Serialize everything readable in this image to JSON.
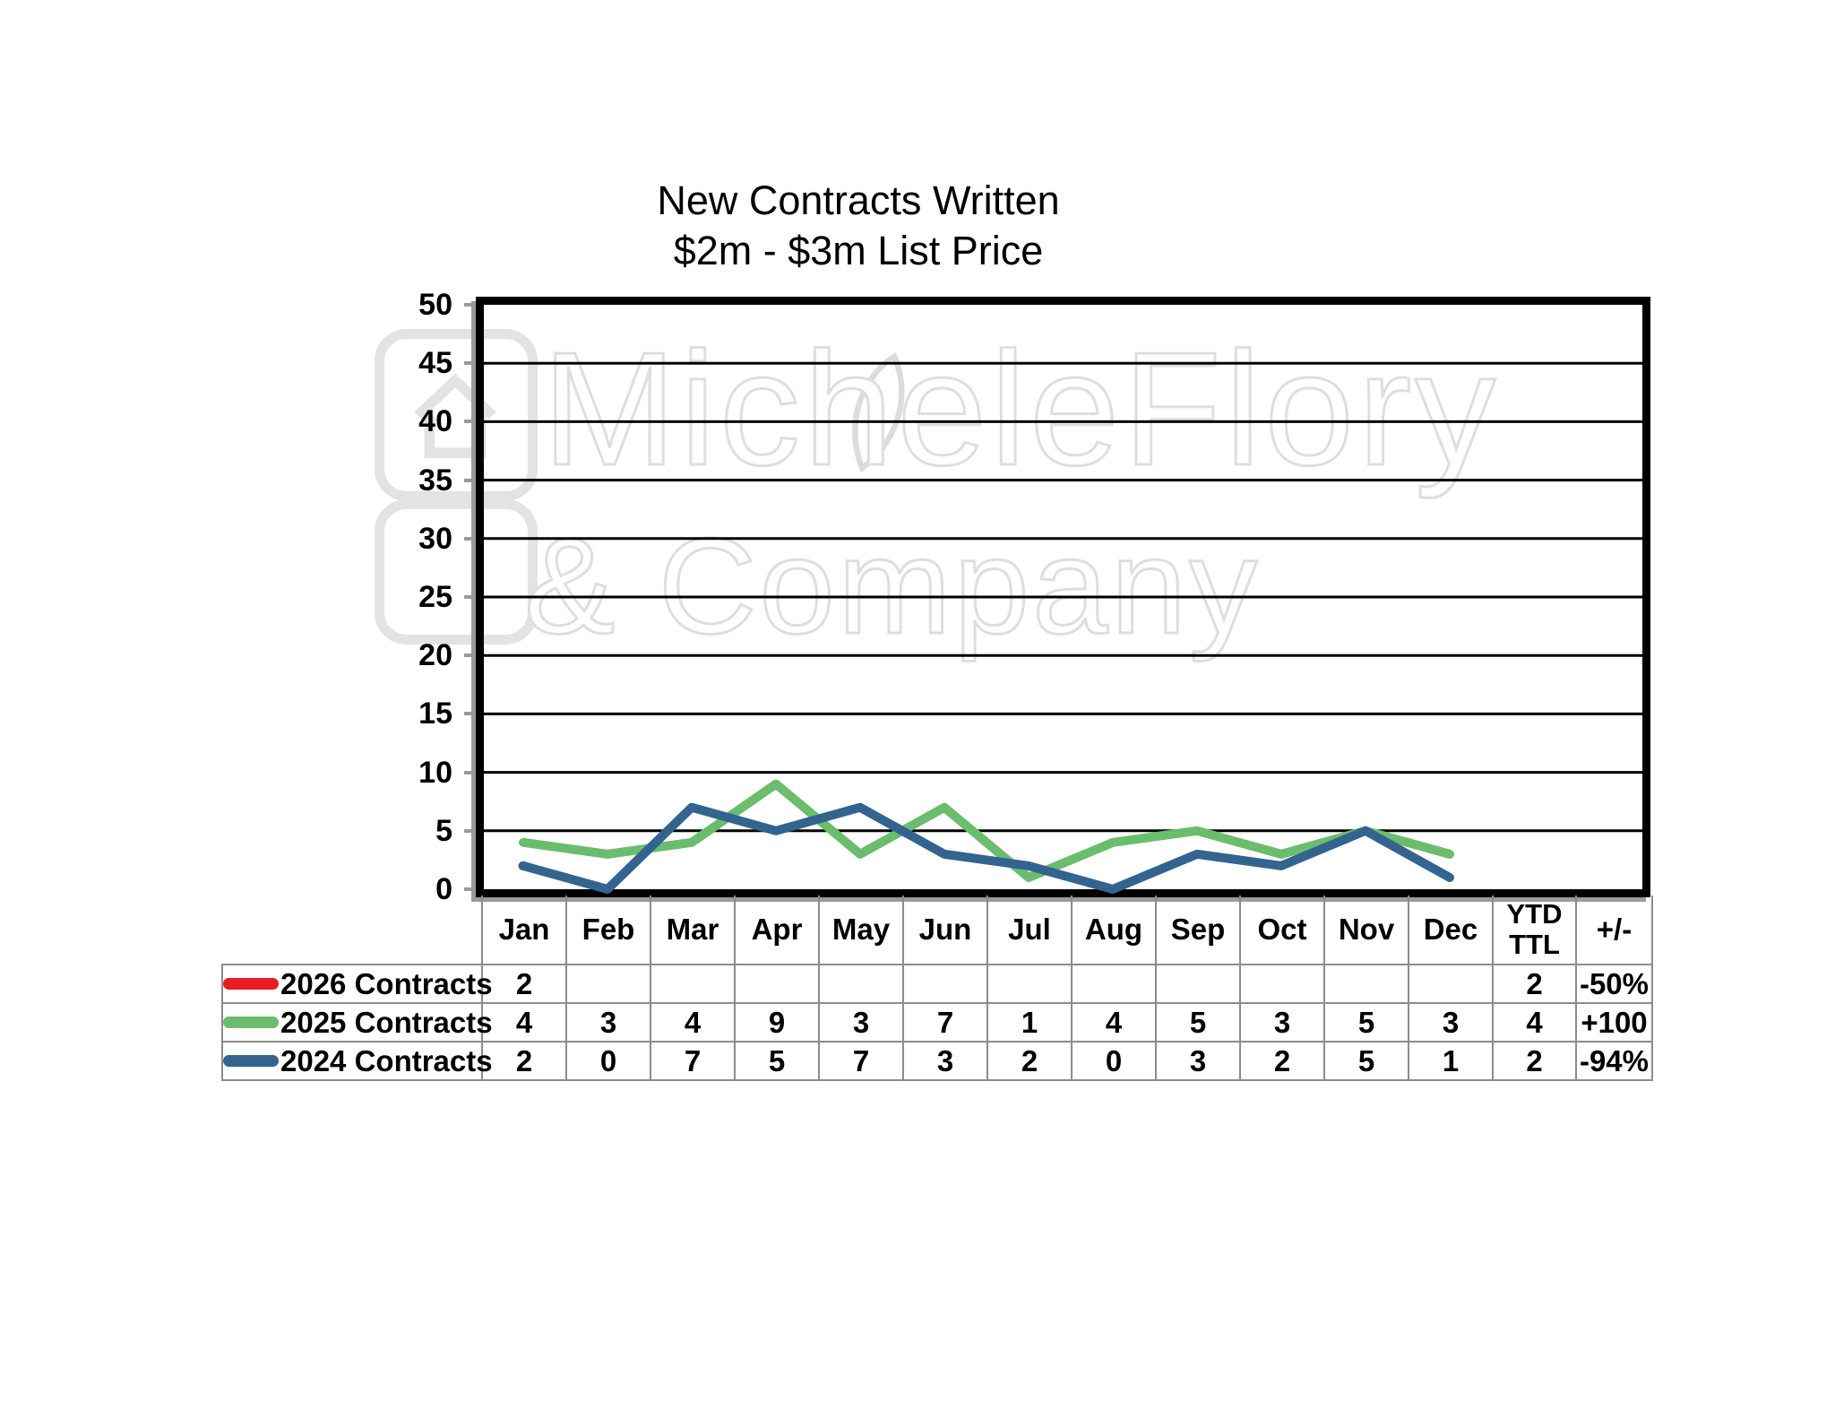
{
  "chart_data": {
    "type": "line",
    "title": "New Contracts Written",
    "subtitle": "$2m - $3m List Price",
    "categories": [
      "Jan",
      "Feb",
      "Mar",
      "Apr",
      "May",
      "Jun",
      "Jul",
      "Aug",
      "Sep",
      "Oct",
      "Nov",
      "Dec"
    ],
    "series": [
      {
        "name": "2026 Contracts",
        "color": "#ec1c24",
        "values": [
          2,
          null,
          null,
          null,
          null,
          null,
          null,
          null,
          null,
          null,
          null,
          null
        ],
        "ytd_ttl": "2",
        "change": "-50%"
      },
      {
        "name": "2025 Contracts",
        "color": "#6abd6c",
        "values": [
          4,
          3,
          4,
          9,
          3,
          7,
          1,
          4,
          5,
          3,
          5,
          3
        ],
        "ytd_ttl": "4",
        "change": "+100"
      },
      {
        "name": "2024 Contracts",
        "color": "#33648f",
        "values": [
          2,
          0,
          7,
          5,
          7,
          3,
          2,
          0,
          3,
          2,
          5,
          1
        ],
        "ytd_ttl": "2",
        "change": "-94%"
      }
    ],
    "ylim": [
      0,
      50
    ],
    "ytick_step": 5,
    "yticks": [
      0,
      5,
      10,
      15,
      20,
      25,
      30,
      35,
      40,
      45,
      50
    ],
    "grid": "horizontal",
    "legend_position": "table-row-labels"
  },
  "table": {
    "ytd_header_line1": "YTD",
    "ytd_header_line2": "TTL",
    "change_header": "+/-"
  },
  "watermark": {
    "brand_line1": "MicheleFlory",
    "brand_line2": "& Company"
  },
  "style": {
    "gridline_color": "#000000",
    "table_border_color": "#8c8c8c",
    "watermark_color": "#dedede"
  }
}
